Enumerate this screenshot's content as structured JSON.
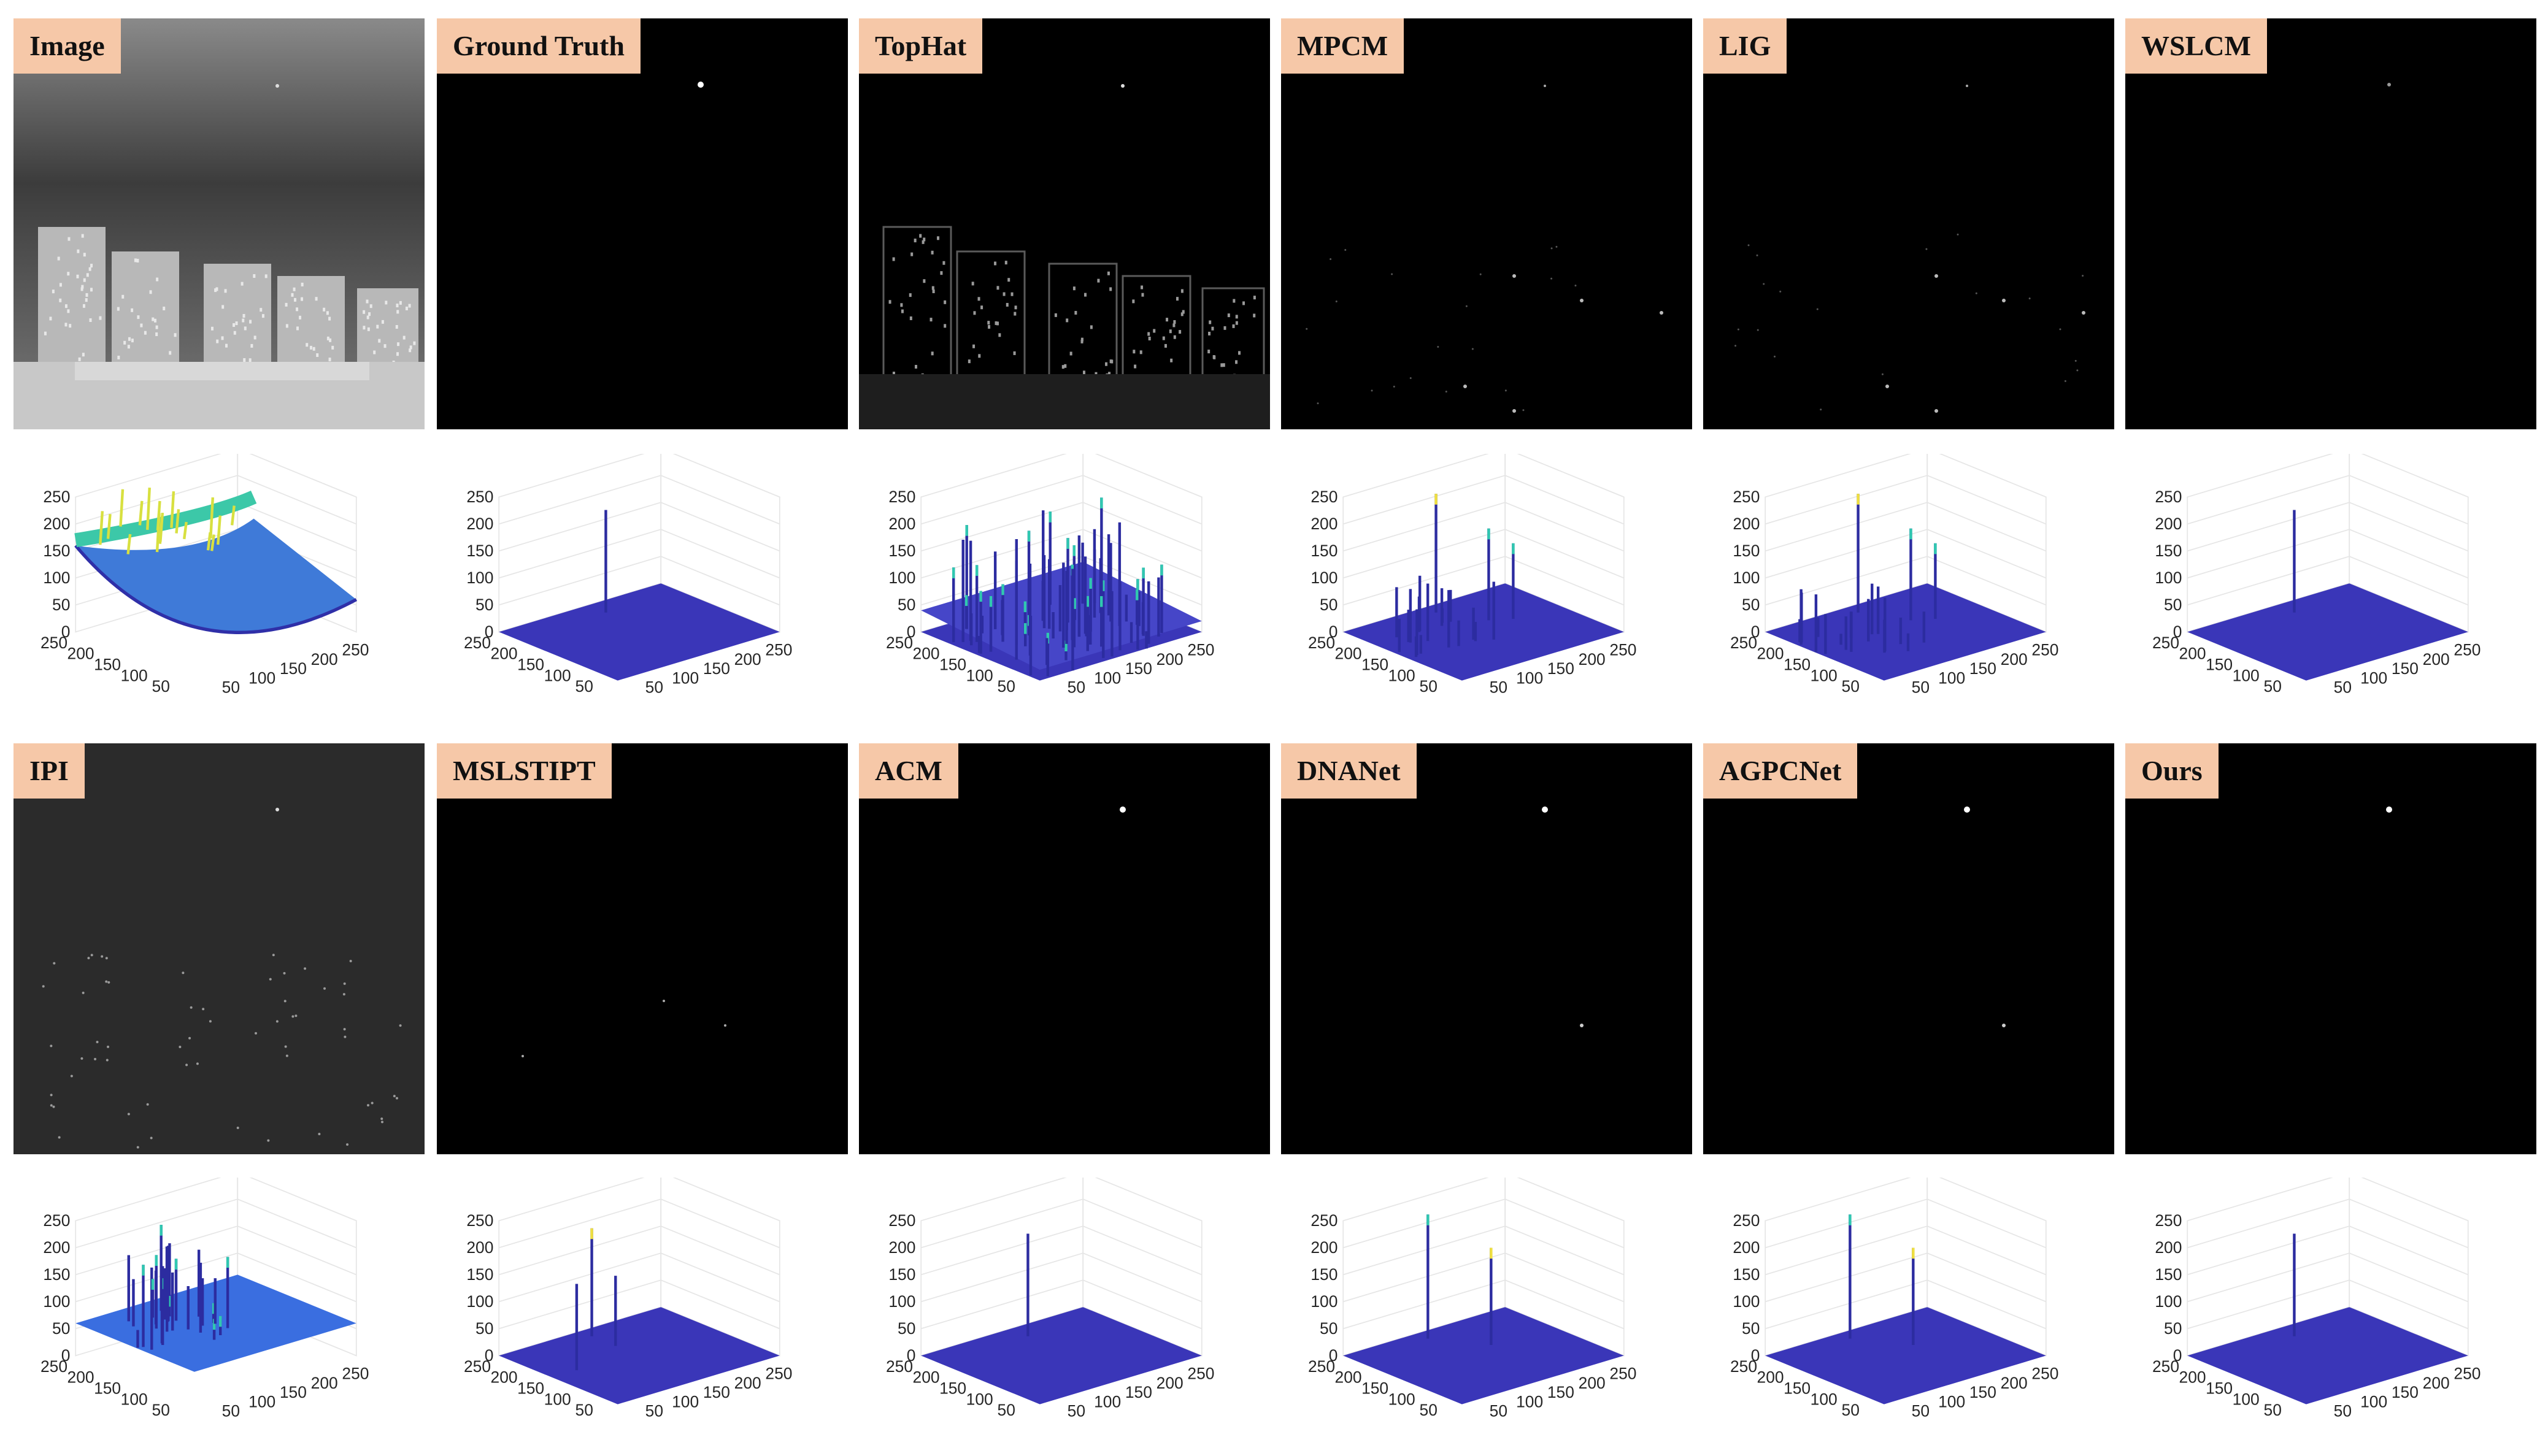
{
  "rows": [
    {
      "methods": [
        {
          "id": "image",
          "label": "Image",
          "view": "thermal_city",
          "surface": "basin"
        },
        {
          "id": "ground-truth",
          "label": "Ground Truth",
          "view": "target_only",
          "surface": "single_spike"
        },
        {
          "id": "tophat",
          "label": "TopHat",
          "view": "tophat_edges",
          "surface": "dense_noise"
        },
        {
          "id": "mpcm",
          "label": "MPCM",
          "view": "sparse_points",
          "surface": "sparse_spikes"
        },
        {
          "id": "lig",
          "label": "LIG",
          "view": "sparse_points",
          "surface": "sparse_spikes"
        },
        {
          "id": "wslcm",
          "label": "WSLCM",
          "view": "target_only_faint",
          "surface": "single_spike"
        }
      ]
    },
    {
      "methods": [
        {
          "id": "ipi",
          "label": "IPI",
          "view": "ipi_gray",
          "surface": "elevated_floor"
        },
        {
          "id": "mslstipt",
          "label": "MSLSTIPT",
          "view": "few_points",
          "surface": "three_spikes"
        },
        {
          "id": "acm",
          "label": "ACM",
          "view": "target_only",
          "surface": "single_spike"
        },
        {
          "id": "dnanet",
          "label": "DNANet",
          "view": "two_points",
          "surface": "two_spikes"
        },
        {
          "id": "agpcnet",
          "label": "AGPCNet",
          "view": "two_points",
          "surface": "two_spikes"
        },
        {
          "id": "ours",
          "label": "Ours",
          "view": "target_only",
          "surface": "single_spike"
        }
      ]
    }
  ],
  "plot_axes": {
    "z_ticks": [
      "250",
      "200",
      "150",
      "100",
      "50",
      "0"
    ],
    "y_ticks": [
      "250",
      "200",
      "150",
      "100",
      "50"
    ],
    "x_ticks": [
      "50",
      "100",
      "150",
      "200",
      "250"
    ]
  },
  "colors": {
    "label_bg": "#f6c8a8",
    "surface_floor": "#3a36b8",
    "spike": "#2c2ca0",
    "peak_cyan": "#30c8b0",
    "peak_yellow": "#f0e040"
  }
}
